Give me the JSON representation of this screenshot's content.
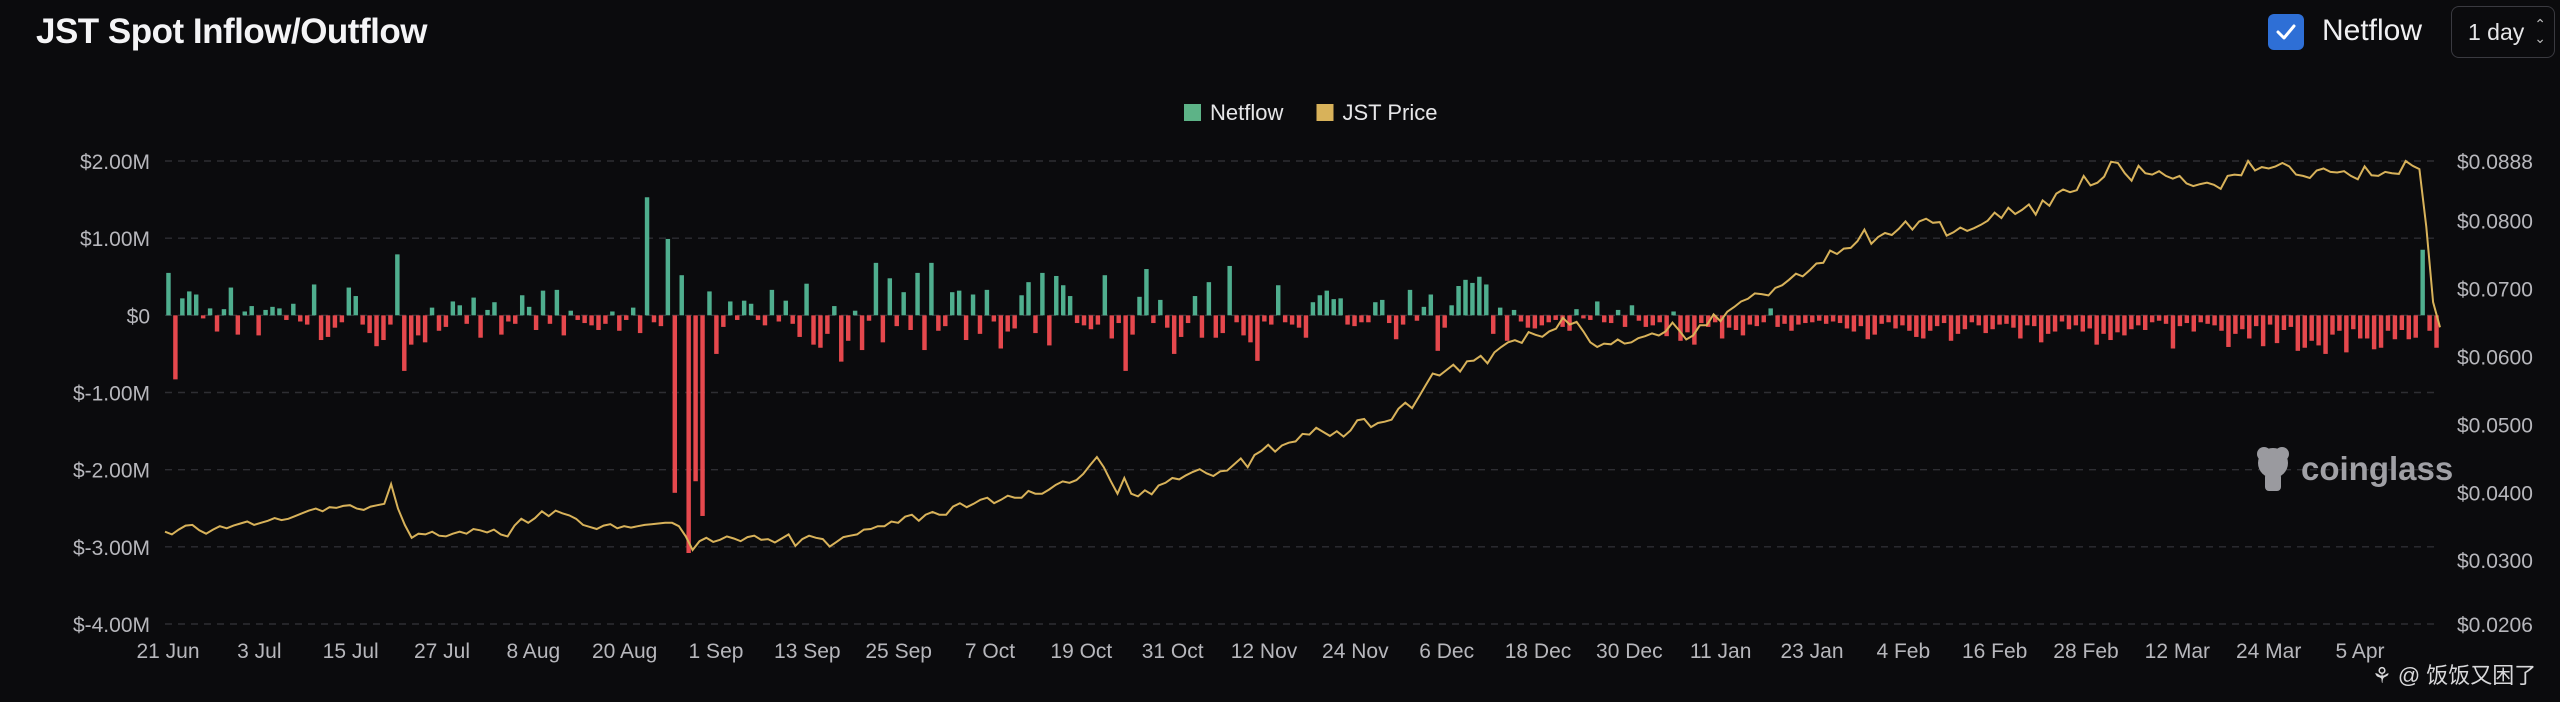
{
  "header": {
    "title": "JST Spot Inflow/Outflow",
    "toggle_label": "Netflow",
    "toggle_checked": true,
    "interval_value": "1 day"
  },
  "watermark": "coinglass",
  "credit": "@ 饭饭又困了",
  "colors": {
    "background": "#0b0b0d",
    "positive": "#4fae8e",
    "negative": "#e5484d",
    "price": "#d8b25a",
    "grid": "#2e2e33",
    "toggle": "#2e6fd6"
  },
  "chart_data": {
    "type": "bar",
    "title": "JST Spot Inflow/Outflow",
    "legend": [
      {
        "name": "Netflow",
        "color": "#5db387"
      },
      {
        "name": "JST Price",
        "color": "#d8b25a"
      }
    ],
    "legend_position": "top-center",
    "grid": true,
    "left_axis": {
      "ticks": [
        "$2.00M",
        "$1.00M",
        "$0",
        "$-1.00M",
        "$-2.00M",
        "$-3.00M",
        "$-4.00M"
      ],
      "range": [
        -4000000,
        2000000
      ]
    },
    "right_axis": {
      "ticks": [
        "$0.0888",
        "$0.0800",
        "$0.0700",
        "$0.0600",
        "$0.0500",
        "$0.0400",
        "$0.0300",
        "$0.0206"
      ],
      "range": [
        0.0206,
        0.0888
      ]
    },
    "x_labels": [
      "21 Jun",
      "3 Jul",
      "15 Jul",
      "27 Jul",
      "8 Aug",
      "20 Aug",
      "1 Sep",
      "13 Sep",
      "25 Sep",
      "7 Oct",
      "19 Oct",
      "31 Oct",
      "12 Nov",
      "24 Nov",
      "6 Dec",
      "18 Dec",
      "30 Dec",
      "11 Jan",
      "23 Jan",
      "4 Feb",
      "16 Feb",
      "28 Feb",
      "12 Mar",
      "24 Mar",
      "5 Apr"
    ],
    "series": [
      {
        "name": "Netflow",
        "type": "bar",
        "axis": "left",
        "values": [
          550000,
          -830000,
          220000,
          310000,
          270000,
          -40000,
          90000,
          -210000,
          80000,
          360000,
          -250000,
          50000,
          120000,
          -260000,
          70000,
          110000,
          90000,
          -60000,
          150000,
          -80000,
          -120000,
          400000,
          -320000,
          -280000,
          -160000,
          -90000,
          360000,
          250000,
          -120000,
          -230000,
          -400000,
          -320000,
          -120000,
          790000,
          -720000,
          -380000,
          -260000,
          -350000,
          100000,
          -200000,
          -150000,
          180000,
          130000,
          -110000,
          230000,
          -290000,
          70000,
          170000,
          -250000,
          -80000,
          -110000,
          260000,
          110000,
          -190000,
          320000,
          -110000,
          330000,
          -260000,
          60000,
          -60000,
          -100000,
          -130000,
          -190000,
          -110000,
          50000,
          -200000,
          -60000,
          100000,
          -230000,
          1530000,
          -90000,
          -140000,
          990000,
          -2300000,
          520000,
          -3080000,
          -2150000,
          -2600000,
          310000,
          -500000,
          -150000,
          180000,
          -60000,
          190000,
          150000,
          -60000,
          -130000,
          330000,
          -80000,
          190000,
          -110000,
          -280000,
          410000,
          -380000,
          -420000,
          -240000,
          120000,
          -600000,
          -330000,
          60000,
          -450000,
          -70000,
          680000,
          -350000,
          480000,
          -140000,
          300000,
          -190000,
          550000,
          -450000,
          680000,
          -200000,
          -140000,
          300000,
          320000,
          -320000,
          270000,
          -240000,
          330000,
          -80000,
          -430000,
          -210000,
          -170000,
          260000,
          430000,
          -230000,
          550000,
          -390000,
          510000,
          390000,
          250000,
          -100000,
          -130000,
          -180000,
          -120000,
          520000,
          -300000,
          -100000,
          -720000,
          -250000,
          240000,
          600000,
          -100000,
          200000,
          -160000,
          -500000,
          -280000,
          -100000,
          250000,
          -290000,
          430000,
          -290000,
          -230000,
          640000,
          -90000,
          -260000,
          -350000,
          -590000,
          -80000,
          -120000,
          390000,
          -90000,
          -120000,
          -160000,
          -290000,
          170000,
          260000,
          320000,
          210000,
          220000,
          -120000,
          -140000,
          -90000,
          -90000,
          170000,
          200000,
          -100000,
          -310000,
          -120000,
          330000,
          -70000,
          110000,
          270000,
          -460000,
          -160000,
          130000,
          380000,
          460000,
          420000,
          500000,
          400000,
          -240000,
          100000,
          -330000,
          70000,
          -80000,
          -160000,
          -170000,
          -130000,
          -90000,
          -60000,
          -150000,
          -200000,
          80000,
          -40000,
          -60000,
          180000,
          -90000,
          -100000,
          70000,
          -150000,
          130000,
          -70000,
          -150000,
          -130000,
          -90000,
          -270000,
          50000,
          -330000,
          -220000,
          -380000,
          -100000,
          -150000,
          -90000,
          -300000,
          -160000,
          -190000,
          -260000,
          -120000,
          -140000,
          -90000,
          90000,
          -150000,
          -110000,
          -200000,
          -120000,
          -100000,
          -90000,
          -70000,
          -110000,
          -80000,
          -100000,
          -170000,
          -210000,
          -140000,
          -310000,
          -250000,
          -110000,
          -90000,
          -170000,
          -130000,
          -200000,
          -280000,
          -300000,
          -200000,
          -140000,
          -100000,
          -330000,
          -240000,
          -180000,
          -90000,
          -130000,
          -230000,
          -180000,
          -120000,
          -110000,
          -160000,
          -300000,
          -130000,
          -140000,
          -350000,
          -240000,
          -210000,
          -80000,
          -180000,
          -130000,
          -210000,
          -170000,
          -380000,
          -240000,
          -320000,
          -220000,
          -260000,
          -180000,
          -130000,
          -190000,
          -90000,
          -70000,
          -110000,
          -430000,
          -140000,
          -100000,
          -210000,
          -90000,
          -110000,
          -130000,
          -200000,
          -410000,
          -240000,
          -180000,
          -300000,
          -140000,
          -400000,
          -120000,
          -360000,
          -190000,
          -150000,
          -460000,
          -420000,
          -330000,
          -390000,
          -500000,
          -250000,
          -200000,
          -480000,
          -180000,
          -300000,
          -300000,
          -440000,
          -420000,
          -200000,
          -310000,
          -190000,
          -310000,
          -290000,
          850000,
          -200000,
          -420000
        ]
      },
      {
        "name": "JST Price",
        "type": "line",
        "axis": "right",
        "values": [
          0.0342,
          0.0338,
          0.0345,
          0.0351,
          0.0352,
          0.0344,
          0.0339,
          0.0345,
          0.035,
          0.0347,
          0.0351,
          0.0354,
          0.0357,
          0.0352,
          0.0355,
          0.0358,
          0.0362,
          0.0359,
          0.0361,
          0.0365,
          0.0369,
          0.0373,
          0.0376,
          0.0372,
          0.0378,
          0.0377,
          0.038,
          0.0381,
          0.0376,
          0.0374,
          0.0379,
          0.0381,
          0.0383,
          0.0412,
          0.0376,
          0.0352,
          0.0333,
          0.0339,
          0.0338,
          0.0342,
          0.0336,
          0.0335,
          0.0339,
          0.0342,
          0.0339,
          0.0346,
          0.0344,
          0.0341,
          0.0345,
          0.0338,
          0.0335,
          0.0351,
          0.0361,
          0.0355,
          0.0362,
          0.0372,
          0.0365,
          0.0373,
          0.0369,
          0.0366,
          0.0361,
          0.0352,
          0.0349,
          0.0346,
          0.0351,
          0.0353,
          0.0347,
          0.035,
          0.0348,
          0.035,
          0.0352,
          0.0353,
          0.0354,
          0.0355,
          0.0355,
          0.035,
          0.0335,
          0.0315,
          0.0328,
          0.0333,
          0.0327,
          0.033,
          0.0335,
          0.0332,
          0.0328,
          0.0334,
          0.0336,
          0.033,
          0.0331,
          0.0326,
          0.0332,
          0.0338,
          0.0321,
          0.0331,
          0.0336,
          0.0333,
          0.0331,
          0.032,
          0.0327,
          0.0334,
          0.0336,
          0.0338,
          0.0345,
          0.0346,
          0.035,
          0.035,
          0.0357,
          0.0355,
          0.0364,
          0.0367,
          0.0358,
          0.0367,
          0.0371,
          0.0367,
          0.0367,
          0.0379,
          0.0384,
          0.0378,
          0.0383,
          0.0389,
          0.0392,
          0.0384,
          0.0389,
          0.0395,
          0.0392,
          0.0392,
          0.0402,
          0.0398,
          0.0398,
          0.0404,
          0.0411,
          0.0416,
          0.0414,
          0.0418,
          0.0427,
          0.044,
          0.0452,
          0.0437,
          0.0417,
          0.0398,
          0.0421,
          0.0398,
          0.0394,
          0.0403,
          0.0397,
          0.041,
          0.0414,
          0.0421,
          0.0419,
          0.0425,
          0.043,
          0.0434,
          0.0428,
          0.0424,
          0.0431,
          0.0432,
          0.0441,
          0.045,
          0.0437,
          0.0455,
          0.0461,
          0.047,
          0.046,
          0.0469,
          0.0473,
          0.0475,
          0.0486,
          0.0485,
          0.0495,
          0.0489,
          0.0483,
          0.049,
          0.0482,
          0.0491,
          0.0506,
          0.0508,
          0.0496,
          0.0502,
          0.0504,
          0.0507,
          0.0523,
          0.0532,
          0.0524,
          0.0541,
          0.0558,
          0.0575,
          0.0572,
          0.058,
          0.0588,
          0.0578,
          0.0593,
          0.0594,
          0.0601,
          0.059,
          0.0606,
          0.0614,
          0.0621,
          0.0624,
          0.062,
          0.0636,
          0.0632,
          0.0629,
          0.0637,
          0.0641,
          0.0657,
          0.0647,
          0.0651,
          0.0637,
          0.0621,
          0.0614,
          0.0619,
          0.0618,
          0.0625,
          0.0619,
          0.0621,
          0.0627,
          0.063,
          0.0634,
          0.0631,
          0.0637,
          0.065,
          0.0638,
          0.0625,
          0.0631,
          0.0646,
          0.0646,
          0.0662,
          0.0652,
          0.0666,
          0.0673,
          0.0681,
          0.0685,
          0.0693,
          0.0692,
          0.069,
          0.0701,
          0.0705,
          0.0713,
          0.0722,
          0.0718,
          0.0727,
          0.0737,
          0.0738,
          0.0756,
          0.0751,
          0.0759,
          0.076,
          0.077,
          0.0787,
          0.0766,
          0.0776,
          0.0782,
          0.0779,
          0.0788,
          0.0799,
          0.0787,
          0.0799,
          0.0803,
          0.0797,
          0.0798,
          0.0778,
          0.0783,
          0.079,
          0.0785,
          0.0789,
          0.0794,
          0.08,
          0.0812,
          0.0804,
          0.0819,
          0.081,
          0.0816,
          0.0824,
          0.0809,
          0.083,
          0.0822,
          0.084,
          0.0846,
          0.0842,
          0.0845,
          0.0866,
          0.0852,
          0.0856,
          0.0865,
          0.0887,
          0.0885,
          0.087,
          0.0859,
          0.0881,
          0.087,
          0.0868,
          0.0873,
          0.0866,
          0.0862,
          0.0866,
          0.0855,
          0.0851,
          0.0854,
          0.0856,
          0.0853,
          0.0847,
          0.0866,
          0.0868,
          0.0867,
          0.0888,
          0.0874,
          0.0879,
          0.0877,
          0.088,
          0.0885,
          0.088,
          0.0868,
          0.0866,
          0.0863,
          0.0874,
          0.0877,
          0.0872,
          0.0871,
          0.0873,
          0.0866,
          0.0861,
          0.088,
          0.0867,
          0.0866,
          0.0872,
          0.087,
          0.0869,
          0.0888,
          0.0881,
          0.0876,
          0.0791,
          0.068,
          0.0643
        ]
      }
    ]
  }
}
